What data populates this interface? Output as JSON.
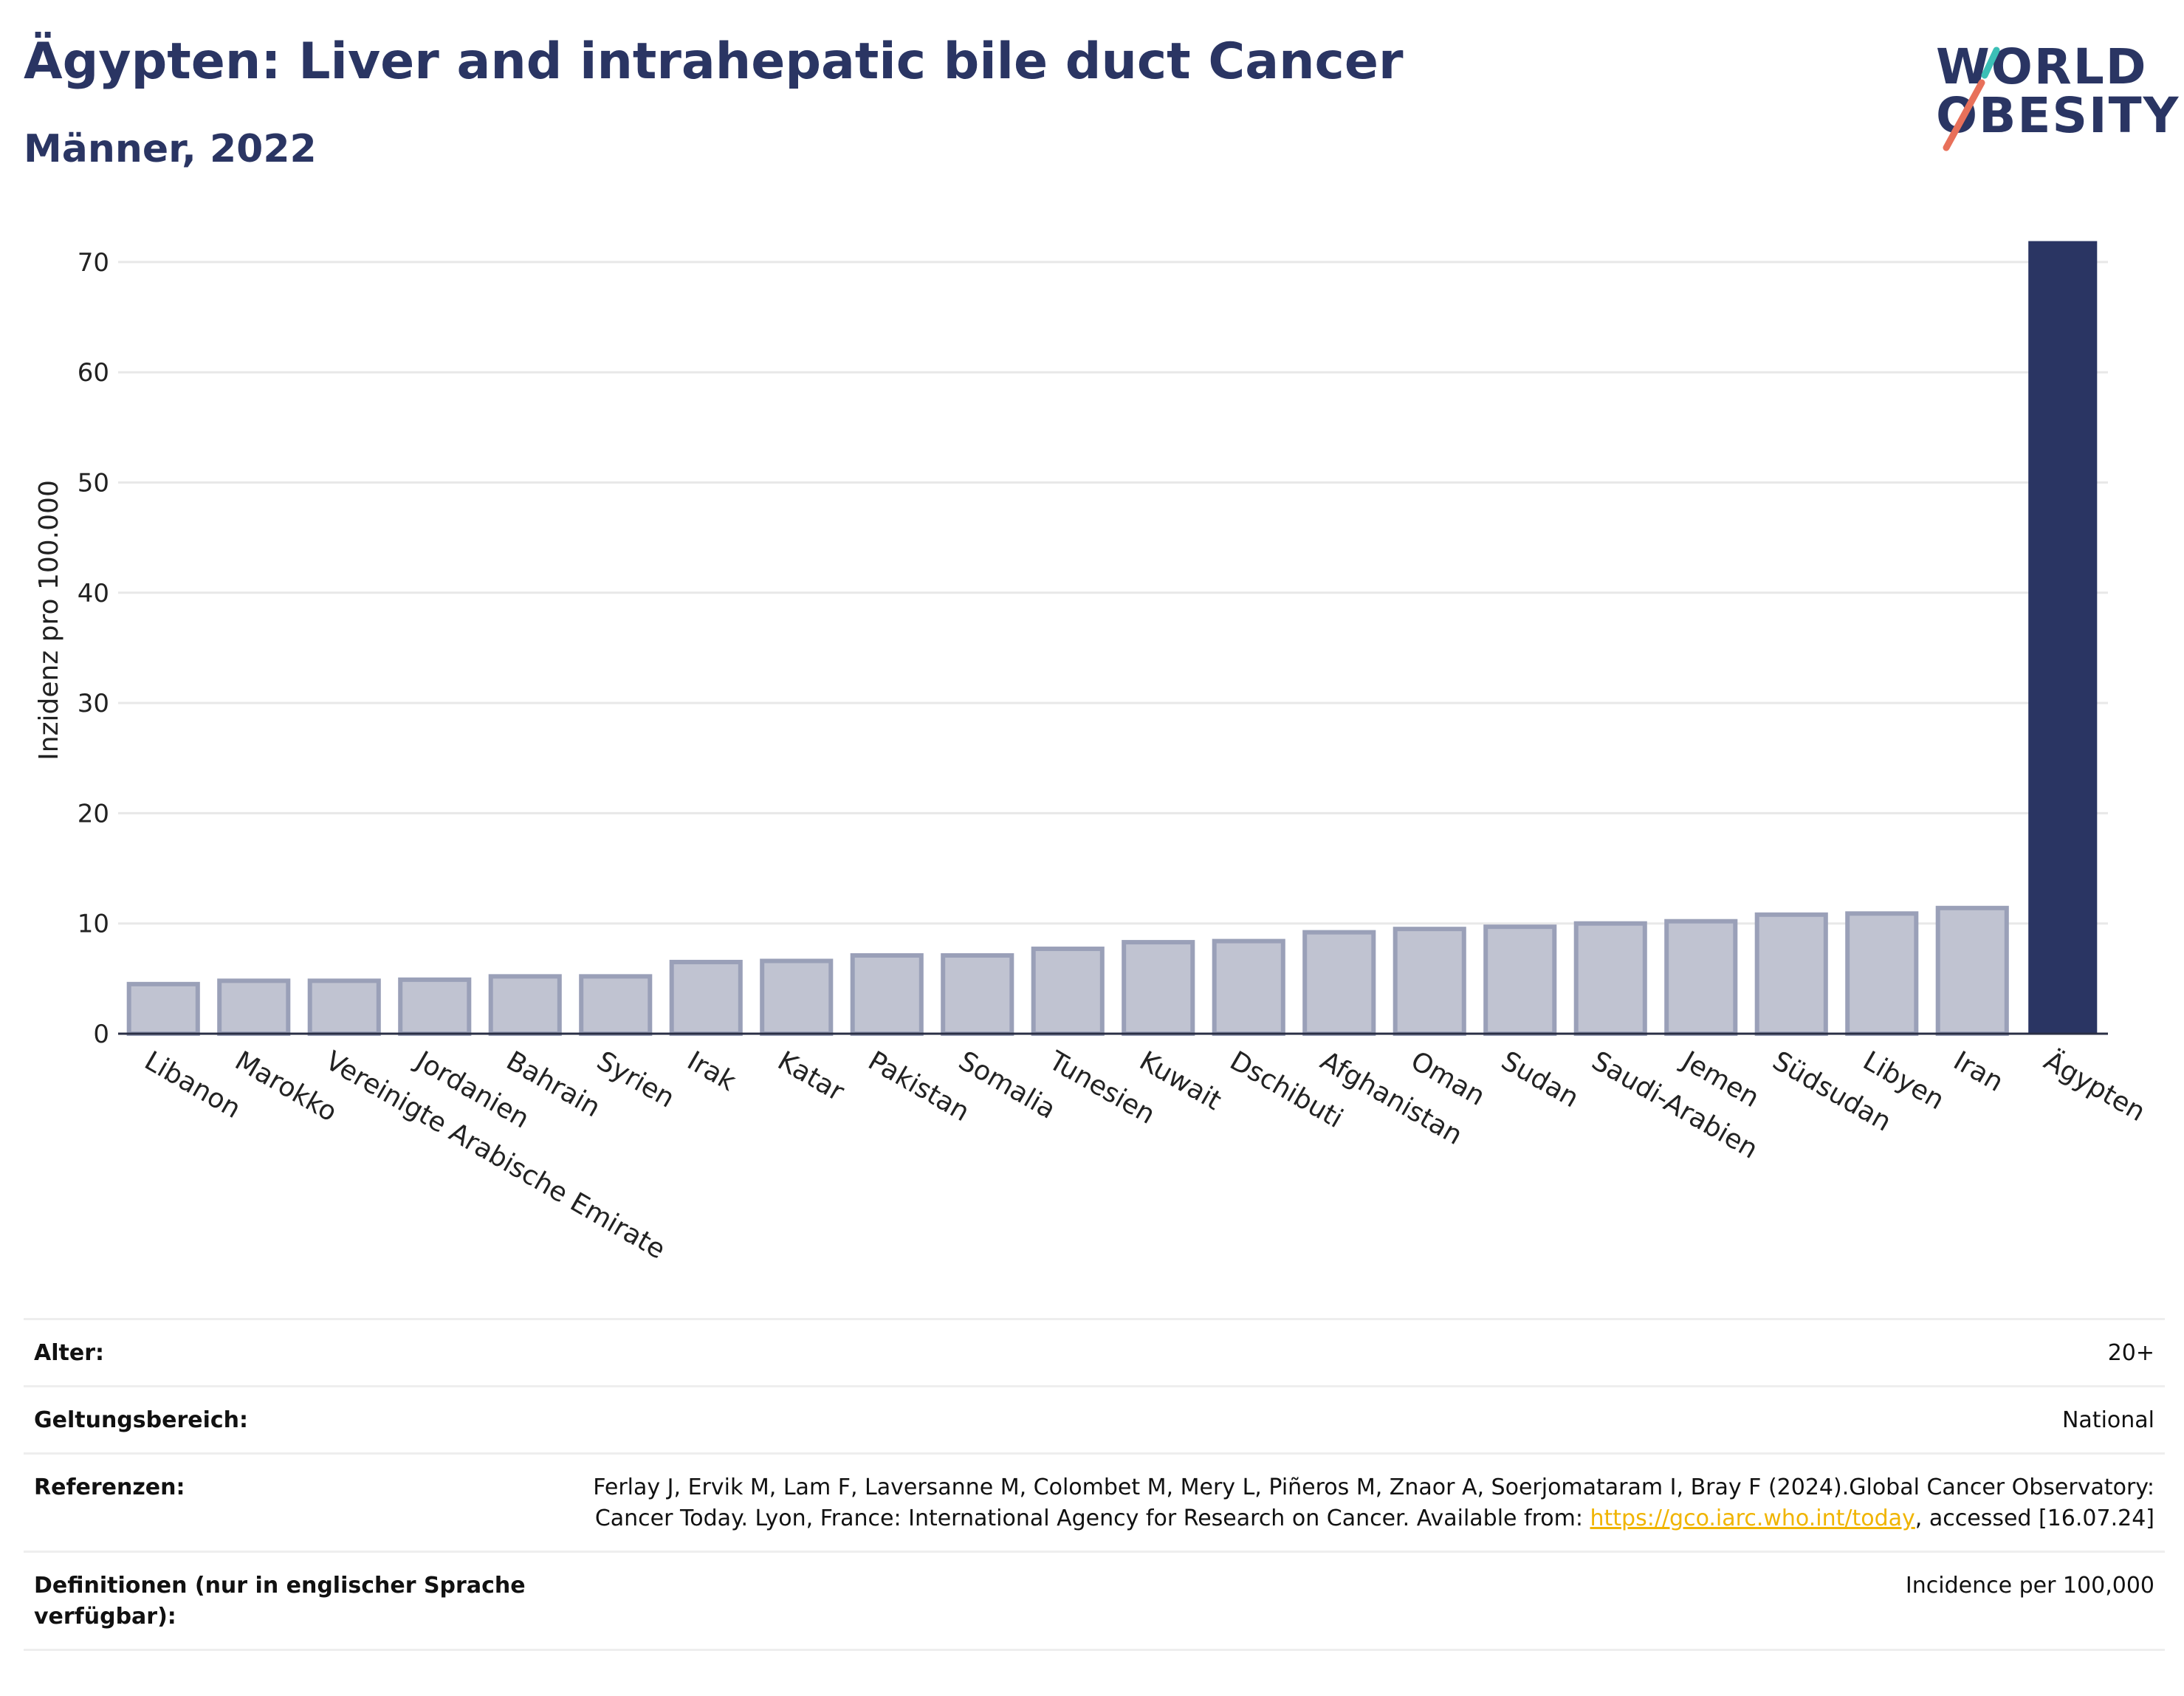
{
  "header": {
    "title": "Ägypten: Liver and intrahepatic bile duct Cancer",
    "subtitle": "Männer, 2022"
  },
  "logo": {
    "line1": "WORLD",
    "line2": "OBESITY",
    "text_color": "#2a3563",
    "slash_colors": [
      "#3bbfb6",
      "#e8705a"
    ]
  },
  "colors": {
    "highlight_bar": "#2a3563",
    "other_bar_fill": "#c0c3d1",
    "other_bar_stroke": "#9aa0b8",
    "gridline": "#e8e8e8",
    "link": "#f0b400"
  },
  "chart_data": {
    "type": "bar",
    "title": "Ägypten: Liver and intrahepatic bile duct Cancer",
    "subtitle": "Männer, 2022",
    "xlabel": "",
    "ylabel": "Inzidenz pro 100.000",
    "ylim": [
      0,
      72
    ],
    "yticks": [
      0,
      10,
      20,
      30,
      40,
      50,
      60,
      70
    ],
    "grid": true,
    "highlight": "Ägypten",
    "categories": [
      "Libanon",
      "Marokko",
      "Vereinigte Arabische Emirate",
      "Jordanien",
      "Bahrain",
      "Syrien",
      "Irak",
      "Katar",
      "Pakistan",
      "Somalia",
      "Tunesien",
      "Kuwait",
      "Dschibuti",
      "Afghanistan",
      "Oman",
      "Sudan",
      "Saudi-Arabien",
      "Jemen",
      "Südsudan",
      "Libyen",
      "Iran",
      "Ägypten"
    ],
    "values": [
      4.5,
      4.8,
      4.8,
      4.9,
      5.2,
      5.2,
      6.5,
      6.6,
      7.1,
      7.1,
      7.7,
      8.3,
      8.4,
      9.2,
      9.5,
      9.7,
      10.0,
      10.2,
      10.8,
      10.9,
      11.4,
      71.9
    ]
  },
  "metadata": {
    "rows": [
      {
        "label": "Alter:",
        "value": "20+"
      },
      {
        "label": "Geltungsbereich:",
        "value": "National"
      },
      {
        "label": "Referenzen:",
        "value_before": "Ferlay J, Ervik M, Lam F, Laversanne M, Colombet M, Mery L, Piñeros M, Znaor A, Soerjomataram I, Bray F (2024).Global Cancer Observatory: Cancer Today. Lyon, France: International Agency for Research on Cancer. Available from: ",
        "link": "https://gco.iarc.who.int/today",
        "value_after": ", accessed [16.07.24]"
      },
      {
        "label": "Definitionen (nur in englischer Sprache verfügbar):",
        "value": "Incidence per 100,000"
      }
    ]
  }
}
